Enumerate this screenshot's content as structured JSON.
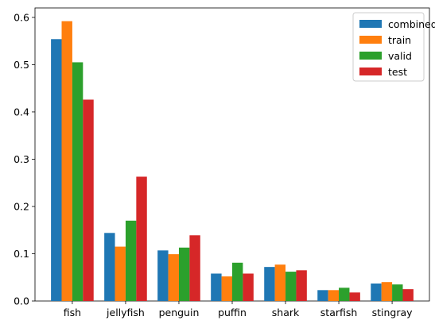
{
  "chart_data": {
    "type": "bar",
    "title": "",
    "xlabel": "",
    "ylabel": "",
    "categories": [
      "fish",
      "jellyfish",
      "penguin",
      "puffin",
      "shark",
      "starfish",
      "stingray"
    ],
    "series": [
      {
        "name": "combined",
        "color": "#1f77b4",
        "values": [
          0.554,
          0.144,
          0.107,
          0.058,
          0.072,
          0.023,
          0.037
        ]
      },
      {
        "name": "train",
        "color": "#ff7f0e",
        "values": [
          0.592,
          0.115,
          0.099,
          0.052,
          0.077,
          0.023,
          0.04
        ]
      },
      {
        "name": "valid",
        "color": "#2ca02c",
        "values": [
          0.505,
          0.17,
          0.113,
          0.081,
          0.062,
          0.028,
          0.035
        ]
      },
      {
        "name": "test",
        "color": "#d62728",
        "values": [
          0.426,
          0.263,
          0.139,
          0.058,
          0.065,
          0.018,
          0.025
        ]
      }
    ],
    "ylim": [
      0,
      0.62
    ],
    "yticks": [
      0.0,
      0.1,
      0.2,
      0.3,
      0.4,
      0.5,
      0.6
    ],
    "ytick_labels": [
      "0.0",
      "0.1",
      "0.2",
      "0.3",
      "0.4",
      "0.5",
      "0.6"
    ],
    "grid": false,
    "legend_position": "top-right"
  }
}
